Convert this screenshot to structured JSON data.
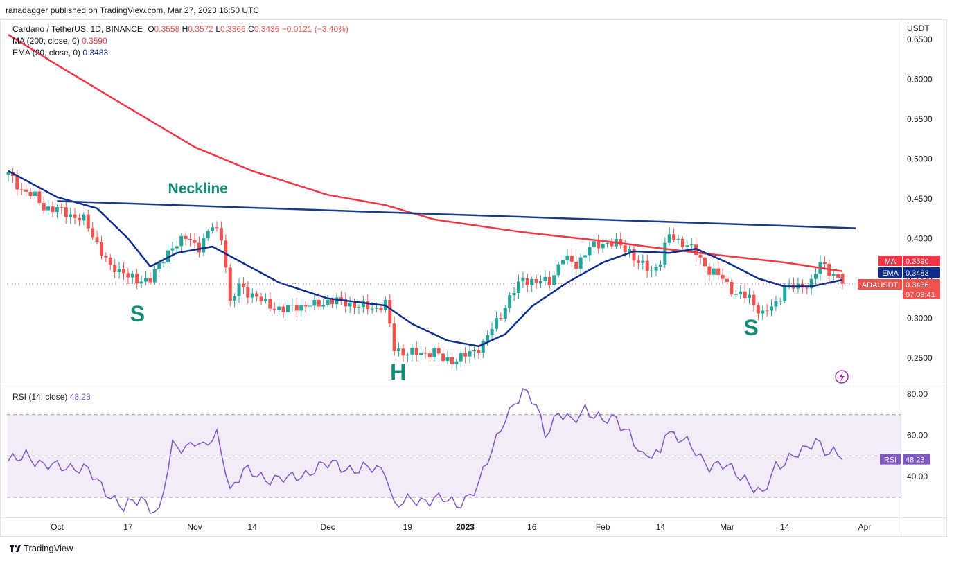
{
  "publisher_line": "ranadagger published on TradingView.com, Mar 27, 2023 16:50 UTC",
  "legend": {
    "symbol": "Cardano / TetherUS, 1D, BINANCE",
    "o_label": "O",
    "o_val": "0.3558",
    "h_label": "H",
    "h_val": "0.3572",
    "l_label": "L",
    "l_val": "0.3366",
    "c_label": "C",
    "c_val": "0.3436",
    "change": "−0.0121 (−3.40%)",
    "ma_label": "MA (200, close, 0)",
    "ma_val": "0.3590",
    "ema_label": "EMA (20, close, 0)",
    "ema_val": "0.3483",
    "rsi_label": "RSI (14, close)",
    "rsi_val": "48.23"
  },
  "price_tags": {
    "ma": {
      "name": "MA",
      "value": "0.3590"
    },
    "ema": {
      "name": "EMA",
      "value": "0.3483"
    },
    "last": {
      "name": "ADAUSDT",
      "value": "0.3436",
      "countdown": "07:09:41"
    },
    "rsi": {
      "name": "RSI",
      "value": "48.23"
    }
  },
  "annotations": {
    "neckline": "Neckline",
    "left_shoulder": "S",
    "head": "H",
    "right_shoulder": "S"
  },
  "footer_brand": "TradingView",
  "colors": {
    "up": "#26a69a",
    "down": "#ef5350",
    "ma": "#f23645",
    "ema": "#0d2d8c",
    "neckline": "#1c3a8a",
    "rsi": "#7e57c2",
    "annotation": "#138d75",
    "rsi_band": "#ede7f6"
  },
  "chart_data": [
    {
      "type": "candlestick",
      "title": "Cardano / TetherUS, 1D, BINANCE",
      "currency": "USDT",
      "ylim": [
        0.225,
        0.668
      ],
      "yticks": [
        "0.6500",
        "0.6000",
        "0.5500",
        "0.5000",
        "0.4500",
        "0.4000",
        "0.3500",
        "0.3000",
        "0.2500"
      ],
      "xticks": [
        "Oct",
        "17",
        "Nov",
        "14",
        "Dec",
        "19",
        "2023",
        "16",
        "Feb",
        "14",
        "Mar",
        "14",
        "Apr"
      ],
      "date_range": [
        "2022-09-20",
        "2023-03-27"
      ],
      "close_path": [
        [
          "2022-09-20",
          0.48
        ],
        [
          "2022-09-23",
          0.462
        ],
        [
          "2022-09-26",
          0.452
        ],
        [
          "2022-09-28",
          0.44
        ],
        [
          "2022-10-01",
          0.436
        ],
        [
          "2022-10-04",
          0.43
        ],
        [
          "2022-10-07",
          0.423
        ],
        [
          "2022-10-10",
          0.395
        ],
        [
          "2022-10-13",
          0.362
        ],
        [
          "2022-10-16",
          0.36
        ],
        [
          "2022-10-19",
          0.344
        ],
        [
          "2022-10-22",
          0.352
        ],
        [
          "2022-10-25",
          0.372
        ],
        [
          "2022-10-27",
          0.392
        ],
        [
          "2022-10-30",
          0.4
        ],
        [
          "2022-11-02",
          0.39
        ],
        [
          "2022-11-05",
          0.415
        ],
        [
          "2022-11-07",
          0.402
        ],
        [
          "2022-11-08",
          0.368
        ],
        [
          "2022-11-09",
          0.318
        ],
        [
          "2022-11-11",
          0.34
        ],
        [
          "2022-11-14",
          0.33
        ],
        [
          "2022-11-17",
          0.318
        ],
        [
          "2022-11-21",
          0.31
        ],
        [
          "2022-11-24",
          0.316
        ],
        [
          "2022-11-28",
          0.316
        ],
        [
          "2022-12-01",
          0.322
        ],
        [
          "2022-12-05",
          0.32
        ],
        [
          "2022-12-08",
          0.315
        ],
        [
          "2022-12-12",
          0.313
        ],
        [
          "2022-12-14",
          0.318
        ],
        [
          "2022-12-16",
          0.262
        ],
        [
          "2022-12-19",
          0.256
        ],
        [
          "2022-12-22",
          0.256
        ],
        [
          "2022-12-25",
          0.258
        ],
        [
          "2022-12-27",
          0.248
        ],
        [
          "2022-12-30",
          0.248
        ],
        [
          "2023-01-02",
          0.256
        ],
        [
          "2023-01-05",
          0.268
        ],
        [
          "2023-01-08",
          0.296
        ],
        [
          "2023-01-11",
          0.325
        ],
        [
          "2023-01-14",
          0.35
        ],
        [
          "2023-01-17",
          0.345
        ],
        [
          "2023-01-20",
          0.347
        ],
        [
          "2023-01-23",
          0.375
        ],
        [
          "2023-01-26",
          0.368
        ],
        [
          "2023-01-29",
          0.388
        ],
        [
          "2023-02-01",
          0.395
        ],
        [
          "2023-02-04",
          0.393
        ],
        [
          "2023-02-07",
          0.385
        ],
        [
          "2023-02-09",
          0.368
        ],
        [
          "2023-02-12",
          0.36
        ],
        [
          "2023-02-14",
          0.372
        ],
        [
          "2023-02-16",
          0.404
        ],
        [
          "2023-02-19",
          0.395
        ],
        [
          "2023-02-22",
          0.382
        ],
        [
          "2023-02-25",
          0.36
        ],
        [
          "2023-02-28",
          0.35
        ],
        [
          "2023-03-03",
          0.33
        ],
        [
          "2023-03-06",
          0.326
        ],
        [
          "2023-03-09",
          0.305
        ],
        [
          "2023-03-12",
          0.318
        ],
        [
          "2023-03-14",
          0.34
        ],
        [
          "2023-03-17",
          0.338
        ],
        [
          "2023-03-20",
          0.346
        ],
        [
          "2023-03-22",
          0.368
        ],
        [
          "2023-03-25",
          0.356
        ],
        [
          "2023-03-27",
          0.3436
        ]
      ],
      "series": [
        {
          "name": "MA (200, close, 0)",
          "values": [
            [
              "2022-09-20",
              0.656
            ],
            [
              "2022-10-01",
              0.618
            ],
            [
              "2022-10-16",
              0.568
            ],
            [
              "2022-11-01",
              0.515
            ],
            [
              "2022-11-14",
              0.485
            ],
            [
              "2022-12-01",
              0.455
            ],
            [
              "2022-12-14",
              0.442
            ],
            [
              "2022-12-25",
              0.424
            ],
            [
              "2023-01-14",
              0.408
            ],
            [
              "2023-02-01",
              0.397
            ],
            [
              "2023-02-15",
              0.387
            ],
            [
              "2023-03-01",
              0.378
            ],
            [
              "2023-03-14",
              0.37
            ],
            [
              "2023-03-27",
              0.359
            ]
          ]
        },
        {
          "name": "EMA (20, close, 0)",
          "values": [
            [
              "2022-09-20",
              0.485
            ],
            [
              "2022-10-01",
              0.452
            ],
            [
              "2022-10-10",
              0.438
            ],
            [
              "2022-10-17",
              0.4
            ],
            [
              "2022-10-22",
              0.365
            ],
            [
              "2022-10-28",
              0.382
            ],
            [
              "2022-11-05",
              0.39
            ],
            [
              "2022-11-10",
              0.375
            ],
            [
              "2022-11-20",
              0.345
            ],
            [
              "2022-12-01",
              0.325
            ],
            [
              "2022-12-14",
              0.316
            ],
            [
              "2022-12-20",
              0.293
            ],
            [
              "2022-12-28",
              0.272
            ],
            [
              "2023-01-04",
              0.265
            ],
            [
              "2023-01-10",
              0.28
            ],
            [
              "2023-01-16",
              0.315
            ],
            [
              "2023-01-24",
              0.345
            ],
            [
              "2023-02-01",
              0.37
            ],
            [
              "2023-02-08",
              0.384
            ],
            [
              "2023-02-16",
              0.382
            ],
            [
              "2023-02-22",
              0.387
            ],
            [
              "2023-03-01",
              0.37
            ],
            [
              "2023-03-08",
              0.35
            ],
            [
              "2023-03-14",
              0.34
            ],
            [
              "2023-03-20",
              0.34
            ],
            [
              "2023-03-27",
              0.3483
            ]
          ]
        },
        {
          "name": "Neckline",
          "values": [
            [
              "2022-10-01",
              0.447
            ],
            [
              "2023-03-30",
              0.413
            ]
          ]
        }
      ],
      "last_price": 0.3436
    },
    {
      "type": "line",
      "title": "RSI (14, close)",
      "ylim": [
        16,
        86
      ],
      "yticks": [
        "80.00",
        "60.00",
        "40.00"
      ],
      "band": [
        30,
        70
      ],
      "midline": 50,
      "series": [
        {
          "name": "RSI (14, close)",
          "values": [
            [
              "2022-09-20",
              46
            ],
            [
              "2022-09-24",
              52
            ],
            [
              "2022-09-28",
              44
            ],
            [
              "2022-10-03",
              46
            ],
            [
              "2022-10-08",
              42
            ],
            [
              "2022-10-12",
              34
            ],
            [
              "2022-10-16",
              24
            ],
            [
              "2022-10-20",
              30
            ],
            [
              "2022-10-24",
              22
            ],
            [
              "2022-10-27",
              54
            ],
            [
              "2022-10-30",
              55
            ],
            [
              "2022-11-01",
              58
            ],
            [
              "2022-11-03",
              53
            ],
            [
              "2022-11-06",
              60
            ],
            [
              "2022-11-08",
              45
            ],
            [
              "2022-11-09",
              34
            ],
            [
              "2022-11-12",
              42
            ],
            [
              "2022-11-17",
              40
            ],
            [
              "2022-11-22",
              38
            ],
            [
              "2022-11-28",
              44
            ],
            [
              "2022-12-03",
              46
            ],
            [
              "2022-12-08",
              43
            ],
            [
              "2022-12-14",
              44
            ],
            [
              "2022-12-16",
              26
            ],
            [
              "2022-12-20",
              28
            ],
            [
              "2022-12-25",
              30
            ],
            [
              "2022-12-30",
              26
            ],
            [
              "2023-01-04",
              36
            ],
            [
              "2023-01-07",
              52
            ],
            [
              "2023-01-10",
              70
            ],
            [
              "2023-01-14",
              80
            ],
            [
              "2023-01-17",
              75
            ],
            [
              "2023-01-19",
              62
            ],
            [
              "2023-01-22",
              70
            ],
            [
              "2023-01-25",
              66
            ],
            [
              "2023-01-28",
              74
            ],
            [
              "2023-02-01",
              66
            ],
            [
              "2023-02-04",
              68
            ],
            [
              "2023-02-07",
              62
            ],
            [
              "2023-02-10",
              48
            ],
            [
              "2023-02-14",
              52
            ],
            [
              "2023-02-15",
              64
            ],
            [
              "2023-02-18",
              58
            ],
            [
              "2023-02-21",
              54
            ],
            [
              "2023-02-25",
              46
            ],
            [
              "2023-03-01",
              44
            ],
            [
              "2023-03-05",
              40
            ],
            [
              "2023-03-09",
              30
            ],
            [
              "2023-03-12",
              45
            ],
            [
              "2023-03-15",
              50
            ],
            [
              "2023-03-19",
              52
            ],
            [
              "2023-03-21",
              58
            ],
            [
              "2023-03-23",
              54
            ],
            [
              "2023-03-25",
              52
            ],
            [
              "2023-03-27",
              48.23
            ]
          ]
        }
      ]
    }
  ]
}
